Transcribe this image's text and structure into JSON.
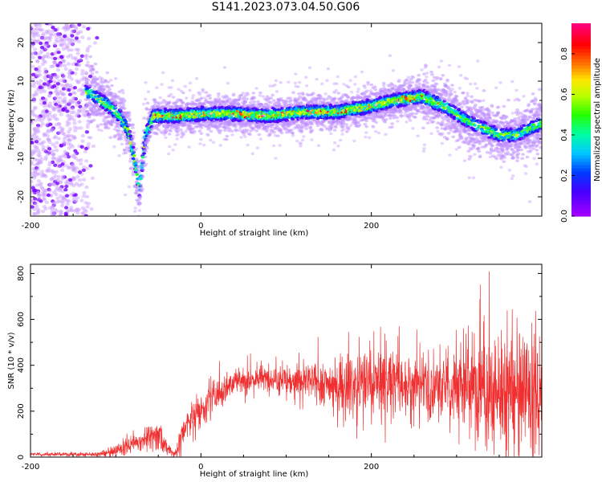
{
  "title": "S141.2023.073.04.50.G06",
  "chart_data": [
    {
      "type": "heatmap",
      "xlabel": "Height of straight line (km)",
      "ylabel": "Frequency (Hz)",
      "xlim": [
        -200,
        400
      ],
      "ylim": [
        -25,
        25
      ],
      "x_ticks": [
        -200,
        0,
        200
      ],
      "y_ticks": [
        -20,
        -10,
        0,
        10,
        20
      ],
      "colorbar": {
        "label": "Normalized spectral amplitude",
        "range": [
          0,
          0.95
        ],
        "ticks": [
          0.0,
          0.2,
          0.4,
          0.6,
          0.8
        ],
        "tick_labels": [
          "0.0",
          "0.2",
          "0.4",
          "0.6",
          "0.8"
        ]
      },
      "ridge": {
        "x": [
          -130,
          -110,
          -95,
          -85,
          -78,
          -72,
          -65,
          -55,
          -40,
          -20,
          0,
          40,
          80,
          120,
          160,
          200,
          230,
          260,
          290,
          310,
          330,
          350,
          370,
          400
        ],
        "y": [
          7,
          4,
          1,
          -3,
          -10,
          -18,
          -4,
          1,
          1,
          1,
          1.5,
          1.5,
          1,
          2,
          2,
          3.5,
          5,
          6,
          3,
          0,
          -2,
          -4,
          -4,
          -1
        ]
      }
    },
    {
      "type": "line",
      "xlabel": "Height of straight line (km)",
      "ylabel": "SNR (10 * v/v)",
      "xlim": [
        -200,
        400
      ],
      "ylim": [
        0,
        840
      ],
      "x_ticks": [
        -200,
        0,
        200
      ],
      "y_ticks": [
        0,
        200,
        400,
        600,
        800
      ],
      "color": "#f03030",
      "envelope": {
        "x": [
          -200,
          -120,
          -100,
          -80,
          -60,
          -50,
          -40,
          -30,
          -20,
          -10,
          0,
          20,
          40,
          80,
          120,
          150,
          180,
          220,
          260,
          280,
          300,
          320,
          340,
          360,
          400
        ],
        "mean": [
          12,
          12,
          25,
          60,
          90,
          110,
          40,
          10,
          120,
          170,
          210,
          280,
          330,
          345,
          330,
          320,
          320,
          330,
          310,
          300,
          320,
          300,
          280,
          280,
          270
        ],
        "spread": [
          6,
          8,
          20,
          30,
          40,
          45,
          30,
          20,
          60,
          60,
          60,
          50,
          50,
          45,
          60,
          80,
          110,
          130,
          100,
          110,
          160,
          200,
          210,
          200,
          200
        ],
        "max": [
          30,
          20,
          70,
          120,
          155,
          170,
          60,
          30,
          220,
          300,
          340,
          440,
          470,
          450,
          500,
          560,
          560,
          600,
          560,
          580,
          640,
          700,
          835,
          720,
          620
        ]
      }
    }
  ]
}
